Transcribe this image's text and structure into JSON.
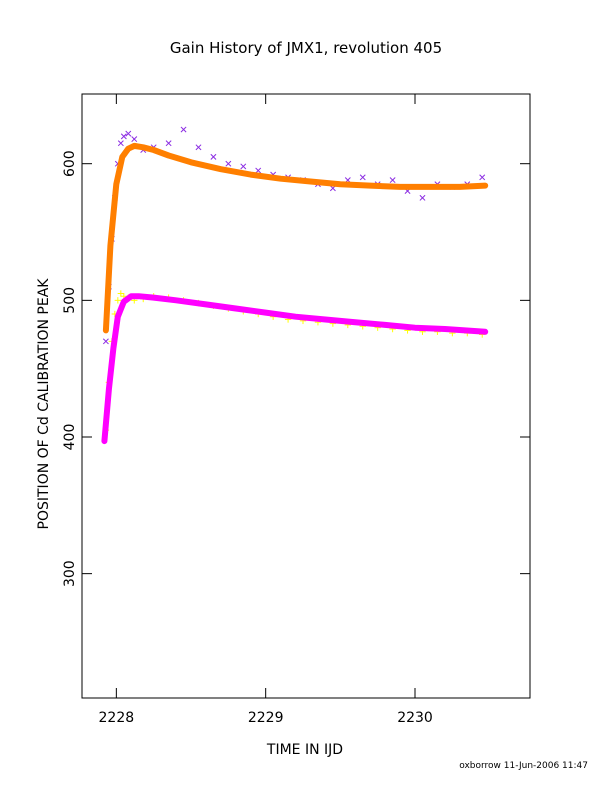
{
  "chart_data": {
    "type": "scatter",
    "title": "Gain History of JMX1, revolution 405",
    "xlabel": "TIME IN IJD",
    "ylabel": "POSITION OF Cd CALIBRATION PEAK",
    "xlim": [
      2227.77,
      2230.77
    ],
    "ylim": [
      209,
      651
    ],
    "xticks": [
      "2228",
      "2229",
      "2230"
    ],
    "yticks": [
      "300",
      "400",
      "500",
      "600"
    ],
    "grid": false,
    "legend": "none",
    "footer": "oxborrow 11-Jun-2006 11:47",
    "series": [
      {
        "marker": "x",
        "color": "#8a2be2",
        "x": [
          2227.93,
          2227.95,
          2227.97,
          2227.99,
          2228.01,
          2228.03,
          2228.05,
          2228.08,
          2228.12,
          2228.18,
          2228.25,
          2228.35,
          2228.45,
          2228.55,
          2228.65,
          2228.75,
          2228.85,
          2228.95,
          2229.05,
          2229.15,
          2229.25,
          2229.35,
          2229.45,
          2229.55,
          2229.65,
          2229.75,
          2229.85,
          2229.95,
          2230.05,
          2230.15,
          2230.25,
          2230.35,
          2230.45
        ],
        "y": [
          470,
          510,
          545,
          575,
          600,
          615,
          620,
          622,
          618,
          610,
          612,
          615,
          625,
          612,
          605,
          600,
          598,
          595,
          592,
          590,
          588,
          585,
          582,
          588,
          590,
          585,
          588,
          580,
          575,
          585,
          583,
          585,
          590
        ]
      },
      {
        "marker": "+",
        "color": "#ffff00",
        "x": [
          2227.93,
          2227.95,
          2227.97,
          2227.99,
          2228.01,
          2228.03,
          2228.05,
          2228.08,
          2228.12,
          2228.18,
          2228.25,
          2228.35,
          2228.45,
          2228.55,
          2228.65,
          2228.75,
          2228.85,
          2228.95,
          2229.05,
          2229.15,
          2229.25,
          2229.35,
          2229.45,
          2229.55,
          2229.65,
          2229.75,
          2229.85,
          2229.95,
          2230.05,
          2230.15,
          2230.25,
          2230.35,
          2230.45
        ],
        "y": [
          405,
          440,
          470,
          490,
          500,
          505,
          503,
          502,
          500,
          501,
          503,
          502,
          500,
          498,
          496,
          494,
          492,
          490,
          488,
          486,
          485,
          484,
          483,
          482,
          481,
          480,
          479,
          478,
          477,
          477,
          476,
          476,
          475
        ]
      }
    ],
    "fits": [
      {
        "color": "#ff7f00",
        "x": [
          2227.93,
          2227.96,
          2228.0,
          2228.04,
          2228.08,
          2228.12,
          2228.18,
          2228.25,
          2228.35,
          2228.5,
          2228.7,
          2228.9,
          2229.1,
          2229.3,
          2229.5,
          2229.7,
          2229.9,
          2230.1,
          2230.3,
          2230.47
        ],
        "y": [
          478,
          540,
          585,
          605,
          611,
          613,
          612,
          610,
          606,
          601,
          596,
          592,
          589,
          587,
          585,
          584,
          583,
          583,
          583,
          584
        ]
      },
      {
        "color": "#ff00ff",
        "x": [
          2227.92,
          2227.95,
          2227.98,
          2228.01,
          2228.05,
          2228.1,
          2228.15,
          2228.25,
          2228.4,
          2228.6,
          2228.8,
          2229.0,
          2229.2,
          2229.4,
          2229.6,
          2229.8,
          2230.0,
          2230.2,
          2230.47
        ],
        "y": [
          397,
          435,
          465,
          488,
          499,
          503,
          503,
          502,
          500,
          497,
          494,
          491,
          488,
          486,
          484,
          482,
          480,
          479,
          477
        ]
      }
    ]
  }
}
